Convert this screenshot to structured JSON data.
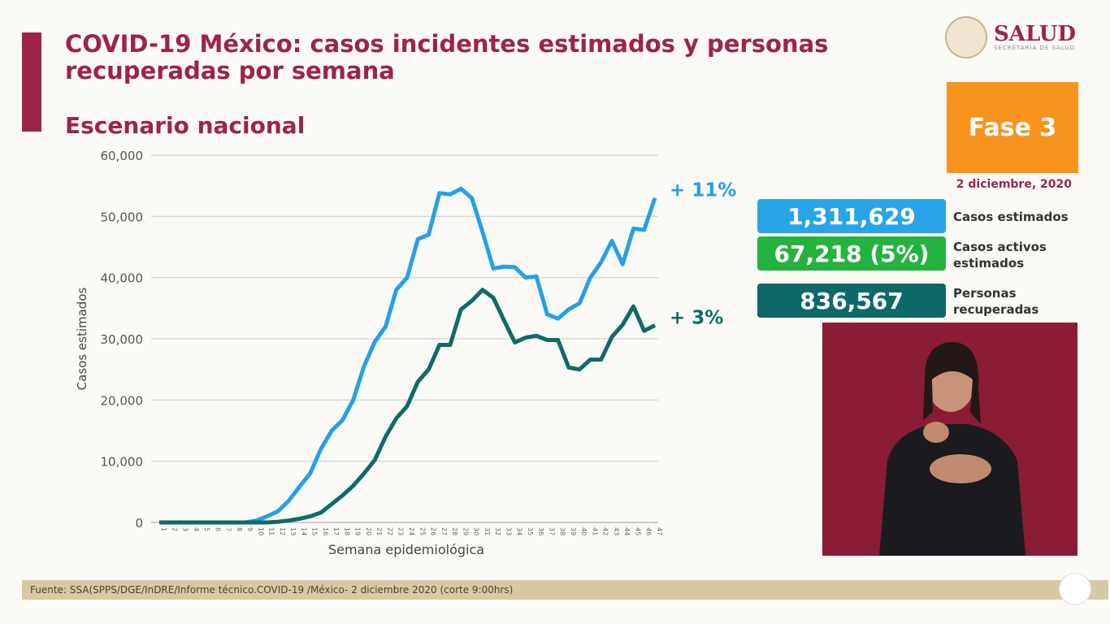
{
  "header": {
    "title": "COVID-19 México: casos incidentes estimados y personas recuperadas por semana",
    "subtitle": "Escenario nacional"
  },
  "logo": {
    "name": "SALUD",
    "sub": "SECRETARÍA DE SALUD"
  },
  "panel": {
    "fase": "Fase 3",
    "date": "2 diciembre, 2020",
    "stats": [
      {
        "value": "1,311,629",
        "label": "Casos estimados",
        "color": "#2aa4e8"
      },
      {
        "value": "67,218 (5%)",
        "label": "Casos activos estimados",
        "color": "#25b340"
      },
      {
        "value": "836,567",
        "label": "Personas recuperadas",
        "color": "#0f6868"
      }
    ]
  },
  "footer": {
    "source": "Fuente: SSA(SPPS/DGE/InDRE/Informe técnico.COVID-19 /México- 2 diciembre 2020 (corte 9:00hrs)"
  },
  "chart_data": {
    "type": "line",
    "xlabel": "Semana epidemiológica",
    "ylabel": "Casos estimados",
    "ylim": [
      0,
      60000
    ],
    "yticks": [
      "0",
      "10,000",
      "20,000",
      "30,000",
      "40,000",
      "50,000",
      "60,000"
    ],
    "grid": true,
    "x": [
      1,
      2,
      3,
      4,
      5,
      6,
      7,
      8,
      9,
      10,
      11,
      12,
      13,
      14,
      15,
      16,
      17,
      18,
      19,
      20,
      21,
      22,
      23,
      24,
      25,
      26,
      27,
      28,
      29,
      30,
      31,
      32,
      33,
      34,
      35,
      36,
      37,
      38,
      39,
      40,
      41,
      42,
      43,
      44,
      45,
      46,
      47
    ],
    "series": [
      {
        "color": "#25a0e6",
        "end_label": "+ 11%",
        "values": [
          0,
          0,
          0,
          0,
          0,
          0,
          0,
          0,
          0,
          300,
          1000,
          1800,
          3500,
          5800,
          8000,
          12000,
          15000,
          16700,
          20000,
          25500,
          29500,
          32000,
          38000,
          40000,
          46300,
          47000,
          53800,
          53600,
          54500,
          53000,
          47500,
          41500,
          41800,
          41700,
          40000,
          40200,
          34000,
          33300,
          34800,
          35800,
          40000,
          42500,
          46000,
          42200,
          48000,
          47800,
          53000
        ]
      },
      {
        "color": "#0e6b66",
        "end_label": "+ 3%",
        "values": [
          0,
          0,
          0,
          0,
          0,
          0,
          0,
          0,
          0,
          0,
          0,
          100,
          300,
          600,
          1000,
          1600,
          3000,
          4400,
          6000,
          8000,
          10200,
          14000,
          17000,
          19000,
          23000,
          25000,
          29000,
          29000,
          34800,
          36200,
          38000,
          36700,
          33000,
          29400,
          30200,
          30500,
          29800,
          29800,
          25300,
          25000,
          26600,
          26600,
          30300,
          32300,
          35300,
          31300,
          32200
        ]
      }
    ]
  }
}
